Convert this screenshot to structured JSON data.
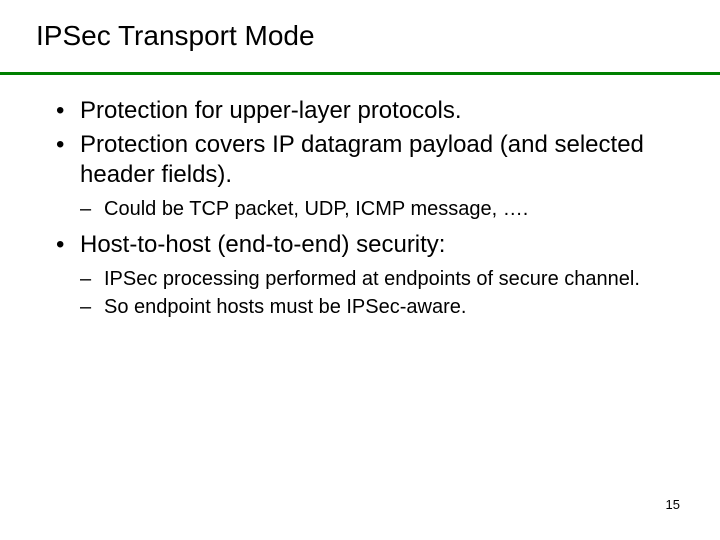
{
  "slide": {
    "title": "IPSec Transport Mode",
    "divider_color": "#008000",
    "background_color": "#ffffff",
    "bullets": [
      {
        "text": "Protection for upper-layer protocols.",
        "children": []
      },
      {
        "text": "Protection covers IP datagram payload (and selected header fields).",
        "children": [
          {
            "text": "Could be TCP packet, UDP, ICMP message, …."
          }
        ]
      },
      {
        "text": "Host-to-host (end-to-end) security:",
        "children": [
          {
            "text": "IPSec processing performed at endpoints of secure channel."
          },
          {
            "text": "So endpoint hosts must be IPSec-aware."
          }
        ]
      }
    ],
    "page_number": "15",
    "title_fontsize": 28,
    "body_fontsize": 24,
    "sub_fontsize": 20,
    "text_color": "#000000"
  }
}
